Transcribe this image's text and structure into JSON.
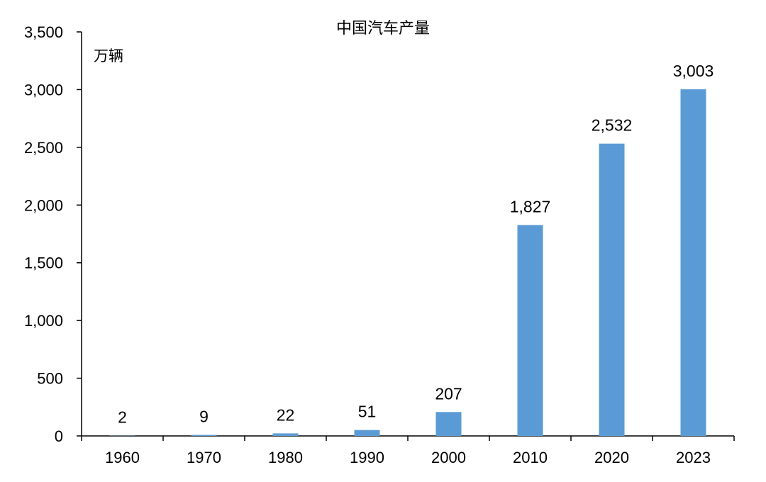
{
  "chart_data": {
    "type": "bar",
    "title": "中国汽车产量",
    "unit_label": "万辆",
    "xlabel": "",
    "ylabel": "",
    "categories": [
      "1960",
      "1970",
      "1980",
      "1990",
      "2000",
      "2010",
      "2020",
      "2023"
    ],
    "values": [
      2,
      9,
      22,
      51,
      207,
      1827,
      2532,
      3003
    ],
    "data_labels": [
      "2",
      "9",
      "22",
      "51",
      "207",
      "1,827",
      "2,532",
      "3,003"
    ],
    "ylim": [
      0,
      3500
    ],
    "yticks": [
      0,
      500,
      1000,
      1500,
      2000,
      2500,
      3000,
      3500
    ],
    "ytick_labels": [
      "0",
      "500",
      "1,000",
      "1,500",
      "2,000",
      "2,500",
      "3,000",
      "3,500"
    ],
    "grid": false,
    "legend": "none",
    "bar_color": "#5b9bd5"
  }
}
